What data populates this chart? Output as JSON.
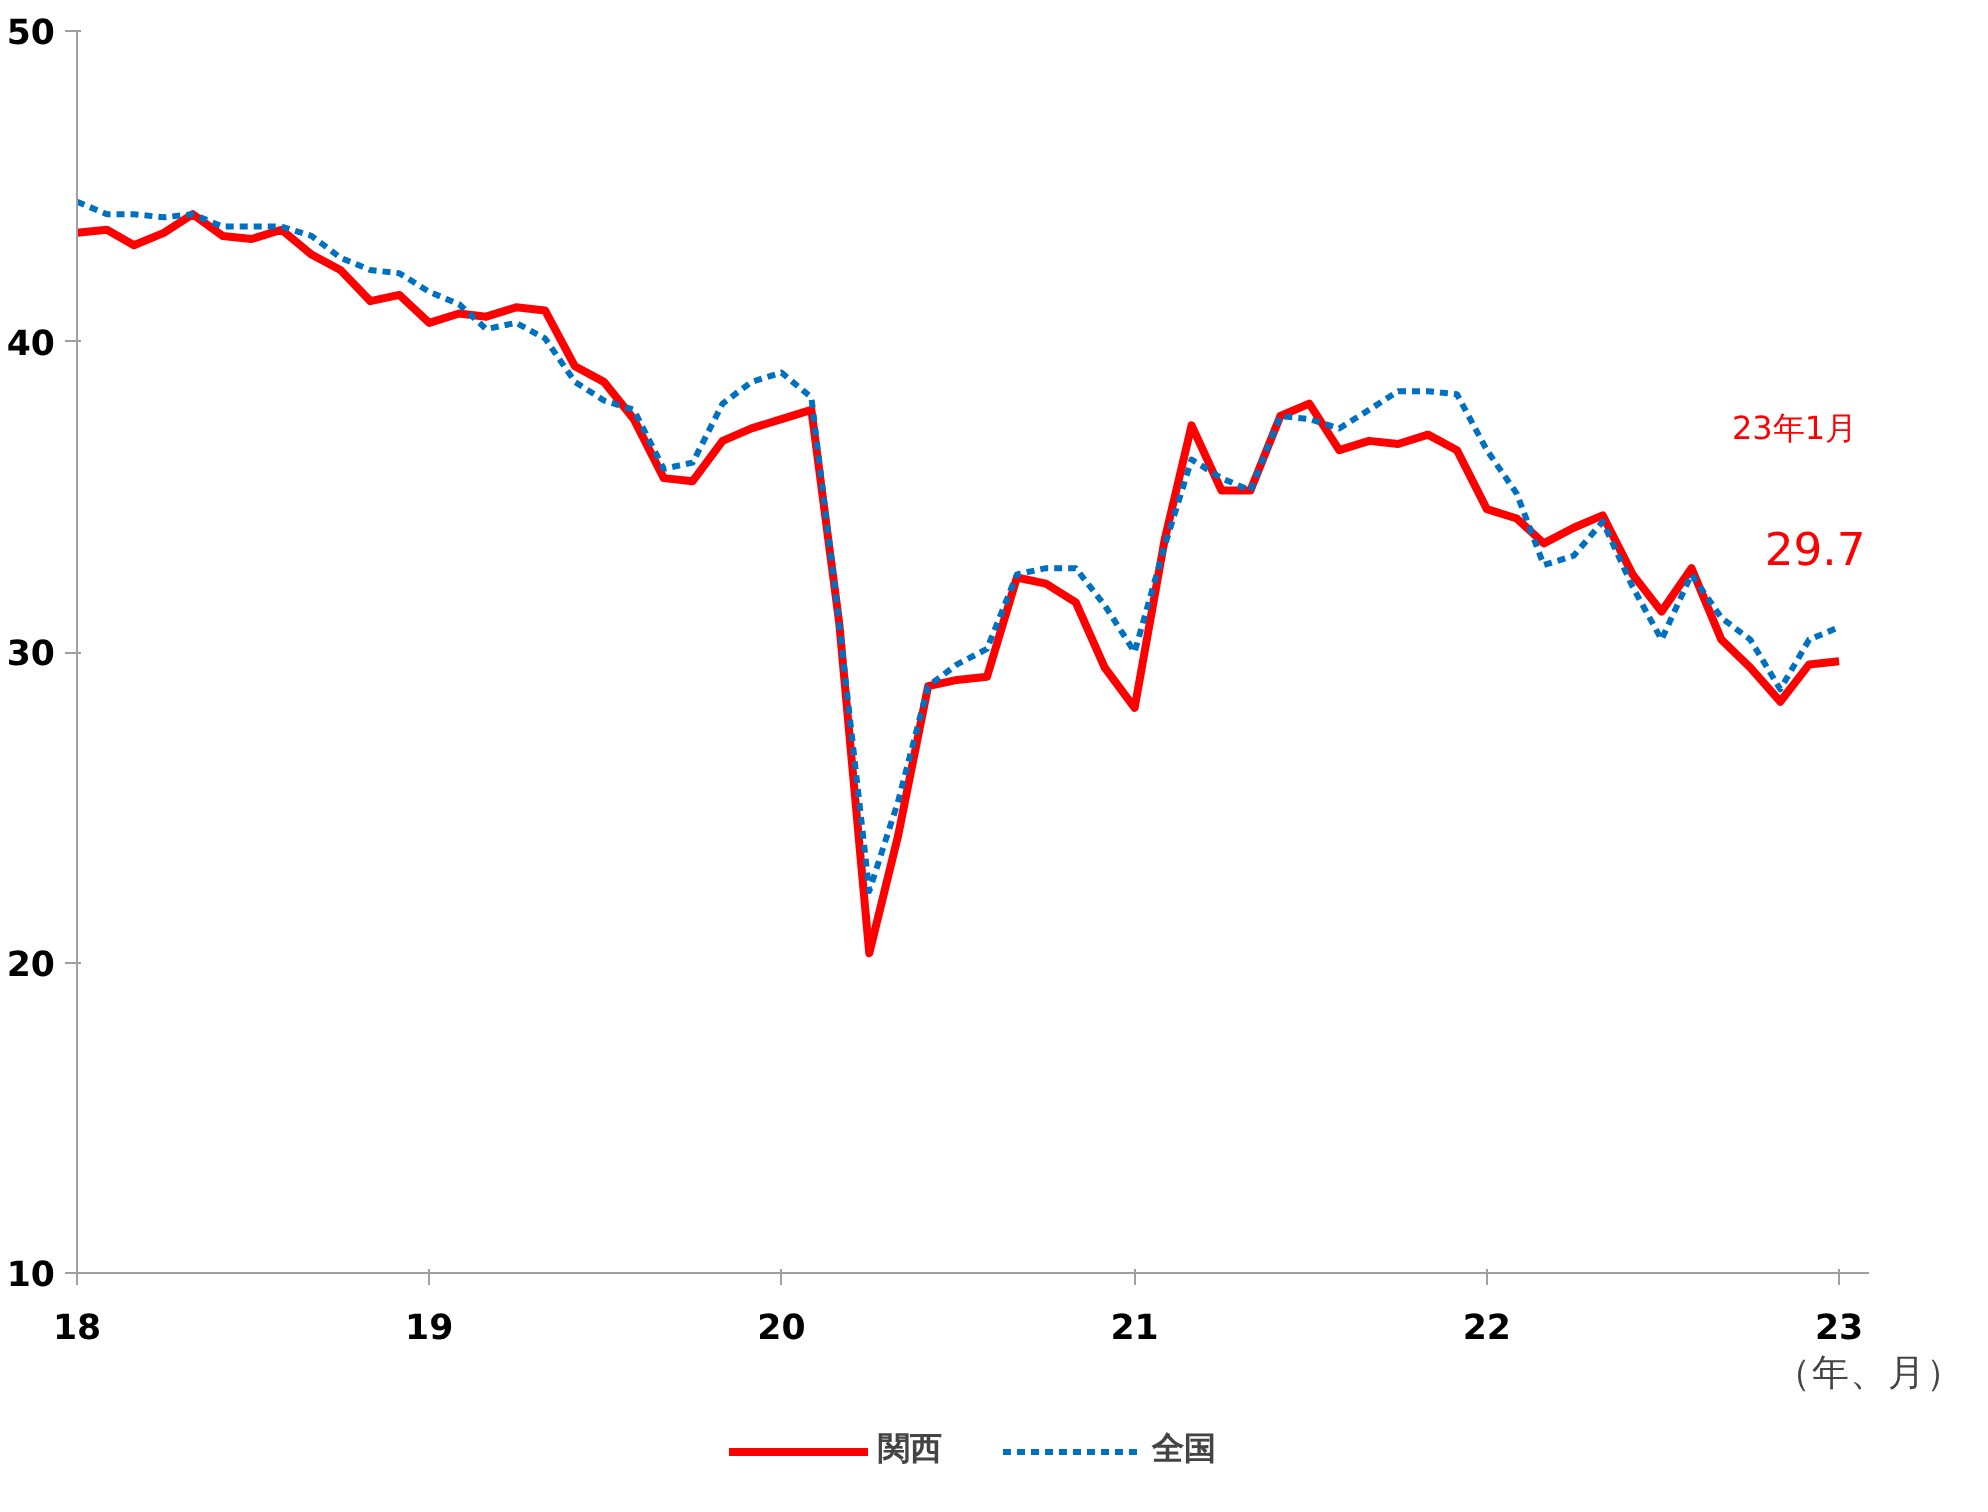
{
  "chart_data": {
    "type": "line",
    "xlabel": "（年、月）",
    "x": [
      "2018-01",
      "2018-02",
      "2018-03",
      "2018-04",
      "2018-05",
      "2018-06",
      "2018-07",
      "2018-08",
      "2018-09",
      "2018-10",
      "2018-11",
      "2018-12",
      "2019-01",
      "2019-02",
      "2019-03",
      "2019-04",
      "2019-05",
      "2019-06",
      "2019-07",
      "2019-08",
      "2019-09",
      "2019-10",
      "2019-11",
      "2019-12",
      "2020-01",
      "2020-02",
      "2020-03",
      "2020-04",
      "2020-05",
      "2020-06",
      "2020-07",
      "2020-08",
      "2020-09",
      "2020-10",
      "2020-11",
      "2020-12",
      "2021-01",
      "2021-02",
      "2021-03",
      "2021-04",
      "2021-05",
      "2021-06",
      "2021-07",
      "2021-08",
      "2021-09",
      "2021-10",
      "2021-11",
      "2021-12",
      "2022-01",
      "2022-02",
      "2022-03",
      "2022-04",
      "2022-05",
      "2022-06",
      "2022-07",
      "2022-08",
      "2022-09",
      "2022-10",
      "2022-11",
      "2022-12",
      "2023-01"
    ],
    "series": [
      {
        "name": "関西",
        "color": "#ff0000",
        "line_style": "solid",
        "values": [
          43.5,
          43.6,
          43.1,
          43.5,
          44.1,
          43.4,
          43.3,
          43.6,
          42.8,
          42.3,
          41.3,
          41.5,
          40.6,
          40.9,
          40.8,
          41.1,
          41.0,
          39.2,
          38.7,
          37.5,
          35.6,
          35.5,
          36.8,
          37.2,
          37.5,
          37.8,
          30.9,
          20.3,
          24.1,
          28.9,
          29.1,
          29.2,
          32.4,
          32.2,
          31.6,
          29.5,
          28.2,
          33.6,
          37.3,
          35.2,
          35.2,
          37.6,
          38.0,
          36.5,
          36.8,
          36.7,
          37.0,
          36.5,
          34.6,
          34.3,
          33.5,
          34.0,
          34.4,
          32.5,
          31.3,
          32.7,
          30.4,
          29.5,
          28.4,
          29.6,
          29.7
        ],
        "value_labels": [
          null,
          null,
          null,
          null,
          null,
          null,
          null,
          null,
          null,
          null,
          null,
          null,
          null,
          null,
          null,
          null,
          null,
          null,
          null,
          null,
          null,
          null,
          null,
          null,
          null,
          null,
          null,
          null,
          null,
          null,
          null,
          null,
          null,
          null,
          null,
          null,
          null,
          null,
          null,
          null,
          null,
          null,
          null,
          null,
          null,
          null,
          null,
          null,
          null,
          null,
          null,
          null,
          null,
          null,
          null,
          null,
          null,
          null,
          null,
          null,
          "29.7"
        ]
      },
      {
        "name": "全国",
        "color": "#0070c0",
        "line_style": "dashed",
        "values": [
          44.5,
          44.1,
          44.1,
          44.0,
          44.1,
          43.7,
          43.7,
          43.7,
          43.4,
          42.7,
          42.3,
          42.2,
          41.6,
          41.2,
          40.4,
          40.6,
          40.1,
          38.7,
          38.1,
          37.8,
          35.9,
          36.1,
          38.0,
          38.7,
          39.0,
          38.2,
          30.9,
          22.3,
          25.2,
          28.9,
          29.6,
          30.1,
          32.5,
          32.7,
          32.7,
          31.5,
          30.0,
          33.4,
          36.2,
          35.6,
          35.2,
          37.6,
          37.5,
          37.2,
          37.8,
          38.4,
          38.4,
          38.3,
          36.5,
          35.1,
          32.8,
          33.1,
          34.2,
          32.1,
          30.4,
          32.5,
          31.1,
          30.4,
          28.8,
          30.4,
          30.8
        ]
      }
    ],
    "annotations": [
      "23年1月"
    ],
    "xlim": [
      "2018-01",
      "2023-02"
    ],
    "xticks": [
      {
        "value": "2018-01",
        "label": "18"
      },
      {
        "value": "2019-01",
        "label": "19"
      },
      {
        "value": "2020-01",
        "label": "20"
      },
      {
        "value": "2021-01",
        "label": "21"
      },
      {
        "value": "2022-01",
        "label": "22"
      },
      {
        "value": "2023-01",
        "label": "23"
      }
    ],
    "ylim": [
      10,
      50
    ],
    "yticks": [
      10,
      20,
      30,
      40,
      50
    ],
    "grid": false,
    "legend": "bottom",
    "marker": "none"
  }
}
